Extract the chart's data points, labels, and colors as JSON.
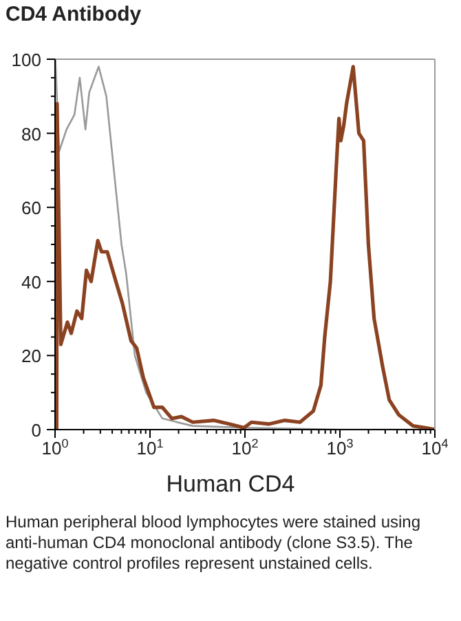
{
  "chart_data": {
    "type": "line",
    "title": "CD4 Antibody",
    "xlabel": "Human CD4",
    "log": "x",
    "xlim": [
      1,
      10000
    ],
    "xticks": [
      {
        "value": 1,
        "label": "10$^{0}$"
      },
      {
        "value": 2,
        "label": null
      },
      {
        "value": 3,
        "label": null
      },
      {
        "value": 4,
        "label": null
      },
      {
        "value": 5,
        "label": null
      },
      {
        "value": 6,
        "label": null
      },
      {
        "value": 7,
        "label": null
      },
      {
        "value": 8,
        "label": null
      },
      {
        "value": 9,
        "label": null
      },
      {
        "value": 10,
        "label": "10$^{1}$"
      },
      {
        "value": 20,
        "label": null
      },
      {
        "value": 30,
        "label": null
      },
      {
        "value": 40,
        "label": null
      },
      {
        "value": 50,
        "label": null
      },
      {
        "value": 60,
        "label": null
      },
      {
        "value": 70,
        "label": null
      },
      {
        "value": 80,
        "label": null
      },
      {
        "value": 90,
        "label": null
      },
      {
        "value": 100,
        "label": "10$^{2}$"
      },
      {
        "value": 200,
        "label": null
      },
      {
        "value": 300,
        "label": null
      },
      {
        "value": 400,
        "label": null
      },
      {
        "value": 500,
        "label": null
      },
      {
        "value": 600,
        "label": null
      },
      {
        "value": 700,
        "label": null
      },
      {
        "value": 800,
        "label": null
      },
      {
        "value": 900,
        "label": null
      },
      {
        "value": 1000,
        "label": "10$^{3}$"
      },
      {
        "value": 2000,
        "label": null
      },
      {
        "value": 3000,
        "label": null
      },
      {
        "value": 4000,
        "label": null
      },
      {
        "value": 5000,
        "label": null
      },
      {
        "value": 6000,
        "label": null
      },
      {
        "value": 7000,
        "label": null
      },
      {
        "value": 8000,
        "label": null
      },
      {
        "value": 9000,
        "label": null
      },
      {
        "value": 10000,
        "label": "10$^{4}$"
      }
    ],
    "ylim": [
      0,
      100
    ],
    "yticks": [
      0,
      {
        "value": 5,
        "label": null
      },
      {
        "value": 10,
        "label": null
      },
      {
        "value": 15,
        "label": null
      },
      20,
      {
        "value": 25,
        "label": null
      },
      {
        "value": 30,
        "label": null
      },
      {
        "value": 35,
        "label": null
      },
      40,
      {
        "value": 45,
        "label": null
      },
      {
        "value": 50,
        "label": null
      },
      {
        "value": 55,
        "label": null
      },
      60,
      {
        "value": 65,
        "label": null
      },
      {
        "value": 70,
        "label": null
      },
      {
        "value": 75,
        "label": null
      },
      80,
      {
        "value": 85,
        "label": null
      },
      {
        "value": 90,
        "label": null
      },
      {
        "value": 95,
        "label": null
      },
      100
    ],
    "grid": false,
    "legend": false,
    "marker": "none",
    "line_style": "solid",
    "series": [
      {
        "color": "#999999",
        "x": [
          1.01,
          1.1,
          1.32,
          1.6,
          1.82,
          2.09,
          2.29,
          2.88,
          3.47,
          3.98,
          5.01,
          5.62,
          6.92,
          9.12,
          13.5,
          28,
          100,
          1000,
          10000
        ],
        "values": [
          100,
          75,
          81,
          85,
          95,
          81,
          91,
          98,
          90,
          75,
          50,
          42,
          20,
          10,
          3,
          1,
          0.5,
          0,
          0
        ]
      },
      {
        "color": "#8b4221",
        "x": [
          1.04,
          1.05,
          1.15,
          1.35,
          1.48,
          1.7,
          1.91,
          2.14,
          2.4,
          2.82,
          3.09,
          3.55,
          4.37,
          5.13,
          6.31,
          7.24,
          8.51,
          11,
          13.5,
          17,
          21.4,
          28.2,
          46.8,
          69.2,
          97.7,
          117,
          178,
          263,
          380,
          525,
          631,
          692,
          794,
          912,
          977,
          1023,
          1096,
          1175,
          1380,
          1585,
          1778,
          1995,
          2291,
          2818,
          3311,
          4169,
          5888,
          7943,
          10000
        ],
        "values": [
          0,
          88,
          23,
          29,
          26,
          32,
          30,
          43,
          40,
          51,
          48,
          48,
          40,
          34,
          24,
          22,
          14,
          6,
          6,
          3,
          3.5,
          2,
          2.5,
          1.5,
          0.5,
          2,
          1.5,
          2.5,
          2,
          5,
          12,
          25,
          40,
          70,
          84,
          78,
          82,
          88,
          98,
          80,
          78,
          50,
          30,
          17,
          8,
          4,
          1,
          0.5,
          0
        ]
      }
    ],
    "annotations": [
      "Human peripheral blood lymphocytes were stained using anti-human CD4 monoclonal antibody (clone S3.5). The negative control profiles represent unstained cells."
    ]
  }
}
